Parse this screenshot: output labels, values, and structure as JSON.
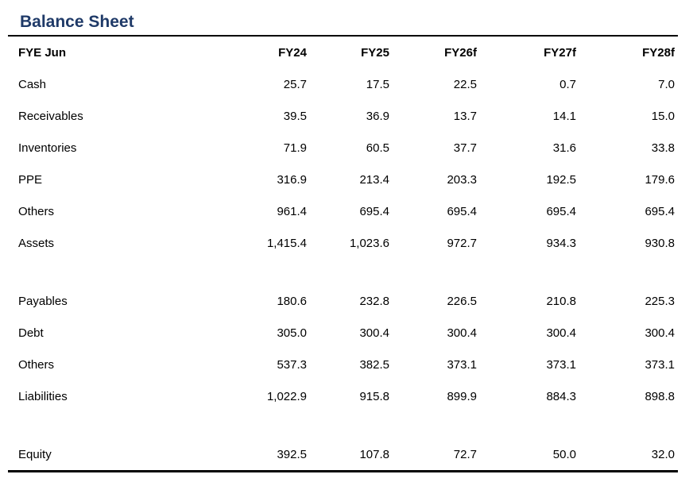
{
  "title": "Balance Sheet",
  "colors": {
    "title_text": "#1f3a68",
    "rule": "#000000",
    "body_text": "#000000",
    "background": "#ffffff"
  },
  "table": {
    "columns": [
      "FYE Jun",
      "FY24",
      "FY25",
      "FY26f",
      "FY27f",
      "FY28f"
    ],
    "rows": [
      {
        "label": "Cash",
        "values": [
          "25.7",
          "17.5",
          "22.5",
          "0.7",
          "7.0"
        ]
      },
      {
        "label": "Receivables",
        "values": [
          "39.5",
          "36.9",
          "13.7",
          "14.1",
          "15.0"
        ]
      },
      {
        "label": "Inventories",
        "values": [
          "71.9",
          "60.5",
          "37.7",
          "31.6",
          "33.8"
        ]
      },
      {
        "label": "PPE",
        "values": [
          "316.9",
          "213.4",
          "203.3",
          "192.5",
          "179.6"
        ]
      },
      {
        "label": "Others",
        "values": [
          "961.4",
          "695.4",
          "695.4",
          "695.4",
          "695.4"
        ]
      },
      {
        "label": "Assets",
        "values": [
          "1,415.4",
          "1,023.6",
          "972.7",
          "934.3",
          "930.8"
        ]
      },
      {
        "label": "",
        "values": [
          "",
          "",
          "",
          "",
          ""
        ],
        "spacer": true
      },
      {
        "label": "Payables",
        "values": [
          "180.6",
          "232.8",
          "226.5",
          "210.8",
          "225.3"
        ]
      },
      {
        "label": "Debt",
        "values": [
          "305.0",
          "300.4",
          "300.4",
          "300.4",
          "300.4"
        ]
      },
      {
        "label": "Others",
        "values": [
          "537.3",
          "382.5",
          "373.1",
          "373.1",
          "373.1"
        ]
      },
      {
        "label": "Liabilities",
        "values": [
          "1,022.9",
          "915.8",
          "899.9",
          "884.3",
          "898.8"
        ]
      },
      {
        "label": "",
        "values": [
          "",
          "",
          "",
          "",
          ""
        ],
        "spacer": true
      },
      {
        "label": "Equity",
        "values": [
          "392.5",
          "107.8",
          "72.7",
          "50.0",
          "32.0"
        ]
      }
    ]
  }
}
